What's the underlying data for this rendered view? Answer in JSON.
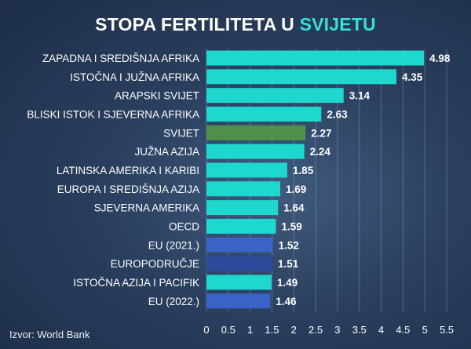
{
  "title": {
    "main": "STOPA FERTILITETA U",
    "accent": "SVIJETU"
  },
  "source": "Izvor: World Bank",
  "colors": {
    "cyan": "#1ed8d0",
    "green": "#4f8f4c",
    "blue": "#3a63c7",
    "darkblue": "#2b4a9a",
    "accent": "#35e0d8"
  },
  "chart_data": {
    "type": "bar",
    "orientation": "horizontal",
    "title": "STOPA FERTILITETA U SVIJETU",
    "xlim": [
      0,
      5.5
    ],
    "xticks": [
      "0",
      "0.5",
      "1",
      "1.5",
      "2",
      "2.5",
      "3",
      "3.5",
      "4",
      "4.5",
      "5",
      "5.5"
    ],
    "categories": [
      "ZAPADNA I SREDIŠNJA AFRIKA",
      "ISTOČNA I JUŽNA AFRIKA",
      "ARAPSKI SVIJET",
      "BLISKI ISTOK I SJEVERNA AFRIKA",
      "SVIJET",
      "JUŽNA AZIJA",
      "LATINSKA AMERIKA I KARIBI",
      "EUROPA I SREDIŠNJA AZIJA",
      "SJEVERNA AMERIKA",
      "OECD",
      "EU (2021.)",
      "EUROPODRUČJE",
      "ISTOČNA AZIJA I PACIFIK",
      "EU (2022.)"
    ],
    "values": [
      4.98,
      4.35,
      3.14,
      2.63,
      2.27,
      2.24,
      1.85,
      1.69,
      1.64,
      1.59,
      1.52,
      1.51,
      1.49,
      1.46
    ],
    "labels": [
      "4.98",
      "4.35",
      "3.14",
      "2.63",
      "2.27",
      "2.24",
      "1.85",
      "1.69",
      "1.64",
      "1.59",
      "1.52",
      "1.51",
      "1.49",
      "1.46"
    ],
    "bar_colors": [
      "cyan",
      "cyan",
      "cyan",
      "cyan",
      "green",
      "cyan",
      "cyan",
      "cyan",
      "cyan",
      "cyan",
      "blue",
      "darkblue",
      "cyan",
      "blue"
    ],
    "grid": true
  }
}
